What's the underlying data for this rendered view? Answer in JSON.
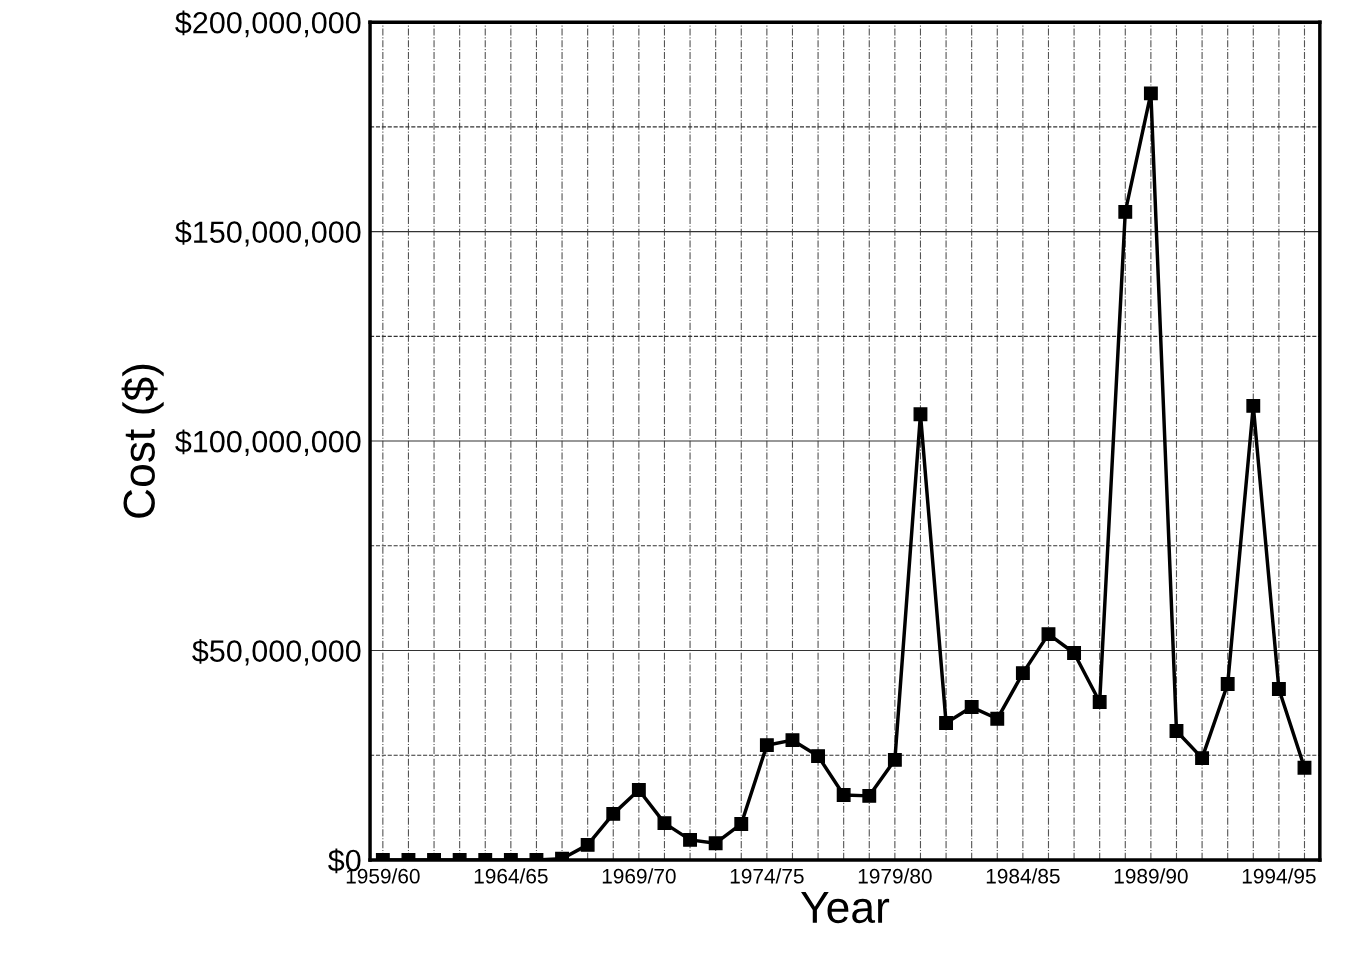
{
  "chart_data": {
    "type": "line",
    "xlabel": "Year",
    "ylabel": "Cost ($)",
    "categories": [
      "1959/60",
      null,
      null,
      null,
      null,
      "1964/65",
      null,
      null,
      null,
      null,
      "1969/70",
      null,
      null,
      null,
      null,
      "1974/75",
      null,
      null,
      null,
      null,
      "1979/80",
      null,
      null,
      null,
      null,
      "1984/85",
      null,
      null,
      null,
      null,
      "1989/90",
      null,
      null,
      null,
      null,
      "1994/95",
      null
    ],
    "series": [
      {
        "color": "#000000",
        "values": [
          0,
          0,
          0,
          0,
          0,
          0,
          0,
          300000,
          3600000,
          11000000,
          16700000,
          8800000,
          4800000,
          4000000,
          8600000,
          27400000,
          28600000,
          24800000,
          15500000,
          15300000,
          23900000,
          106400000,
          32700000,
          36500000,
          33700000,
          44600000,
          53900000,
          49400000,
          37700000,
          154700000,
          183000000,
          30800000,
          24300000,
          42000000,
          108400000,
          40800000,
          22000000
        ]
      }
    ],
    "ylim": [
      0,
      200000000
    ],
    "yticks": [
      {
        "value": 0,
        "label": "$0"
      },
      {
        "value": 25000000,
        "label": null
      },
      {
        "value": 50000000,
        "label": "$50,000,000"
      },
      {
        "value": 75000000,
        "label": null
      },
      {
        "value": 100000000,
        "label": "$100,000,000"
      },
      {
        "value": 125000000,
        "label": null
      },
      {
        "value": 150000000,
        "label": "$150,000,000"
      },
      {
        "value": 175000000,
        "label": null
      },
      {
        "value": 200000000,
        "label": "$200,000,000"
      }
    ],
    "grid": true,
    "marker": "square",
    "line_style": "solid"
  }
}
